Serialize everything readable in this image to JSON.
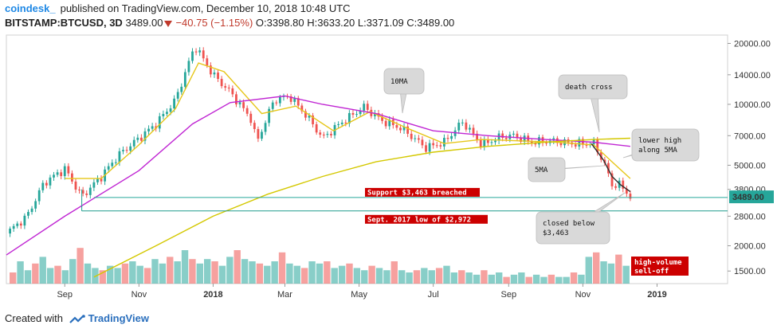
{
  "header": {
    "publisher": "coindesk_",
    "published": "published on TradingView.com, December 10, 2018 10:48 UTC",
    "symbol": "BITSTAMP:BTCUSD, 3D",
    "last": "3489.00",
    "change": "−40.75 (−1.15%)",
    "ohlc": "O:3398.80 H:3633.20 L:3371.09 C:3489.00"
  },
  "footer": {
    "created_with": "Created with",
    "brand": "TradingView"
  },
  "colors": {
    "up": "#26a69a",
    "down": "#ef5350",
    "ma10": "#e6c619",
    "ma5": "#2b2b2b",
    "ma_magenta": "#c026d3",
    "ma_long": "#d4c800",
    "support_line": "#26a69a",
    "label_red": "#cc0000",
    "price_tag": "#26a69a"
  },
  "chart_data": {
    "type": "line",
    "scale": "log",
    "ylim": [
      1300,
      22000
    ],
    "yticks": [
      20000,
      14000,
      10000,
      7000,
      5000,
      3800,
      2800,
      2000,
      1500
    ],
    "ytick_labels": [
      "20000.00",
      "14000.00",
      "10000.00",
      "7000.00",
      "5000.00",
      "3800.00",
      "2800.00",
      "2000.00",
      "1500.00"
    ],
    "x_labels": [
      "Sep",
      "Nov",
      "2018",
      "Mar",
      "May",
      "Jul",
      "Sep",
      "Nov",
      "2019"
    ],
    "x_label_bold": [
      "2018",
      "2019"
    ],
    "x_label_dates": [
      "2017-09-01",
      "2017-11-01",
      "2018-01-01",
      "2018-03-01",
      "2018-05-01",
      "2018-07-01",
      "2018-09-01",
      "2018-11-01",
      "2019-01-01"
    ],
    "xlim": [
      "2017-07-15",
      "2019-02-28"
    ],
    "price_close": [
      [
        "2017-07-15",
        2300
      ],
      [
        "2017-08-01",
        2800
      ],
      [
        "2017-08-15",
        4100
      ],
      [
        "2017-09-01",
        4800
      ],
      [
        "2017-09-15",
        3500
      ],
      [
        "2017-10-01",
        4400
      ],
      [
        "2017-10-15",
        5600
      ],
      [
        "2017-11-01",
        6800
      ],
      [
        "2017-11-15",
        8000
      ],
      [
        "2017-12-01",
        10500
      ],
      [
        "2017-12-17",
        19500
      ],
      [
        "2018-01-01",
        14000
      ],
      [
        "2018-01-15",
        11500
      ],
      [
        "2018-02-01",
        8500
      ],
      [
        "2018-02-06",
        6500
      ],
      [
        "2018-02-20",
        10500
      ],
      [
        "2018-03-05",
        11000
      ],
      [
        "2018-03-20",
        8600
      ],
      [
        "2018-04-01",
        6800
      ],
      [
        "2018-04-15",
        8000
      ],
      [
        "2018-05-05",
        9700
      ],
      [
        "2018-05-20",
        8300
      ],
      [
        "2018-06-05",
        7600
      ],
      [
        "2018-06-25",
        6100
      ],
      [
        "2018-07-10",
        6500
      ],
      [
        "2018-07-25",
        8200
      ],
      [
        "2018-08-10",
        6300
      ],
      [
        "2018-08-25",
        6900
      ],
      [
        "2018-09-05",
        7000
      ],
      [
        "2018-09-20",
        6500
      ],
      [
        "2018-10-05",
        6600
      ],
      [
        "2018-10-25",
        6400
      ],
      [
        "2018-11-10",
        6400
      ],
      [
        "2018-11-18",
        5200
      ],
      [
        "2018-11-25",
        4000
      ],
      [
        "2018-12-02",
        4000
      ],
      [
        "2018-12-10",
        3489
      ]
    ],
    "series": [
      {
        "values": [
          [
            "2017-09-01",
            4300
          ],
          [
            "2017-10-01",
            4300
          ],
          [
            "2017-11-01",
            6300
          ],
          [
            "2017-12-01",
            9500
          ],
          [
            "2017-12-20",
            16000
          ],
          [
            "2018-01-10",
            14500
          ],
          [
            "2018-02-10",
            9000
          ],
          [
            "2018-03-10",
            9800
          ],
          [
            "2018-04-10",
            7400
          ],
          [
            "2018-05-10",
            9200
          ],
          [
            "2018-06-10",
            7600
          ],
          [
            "2018-07-10",
            6400
          ],
          [
            "2018-08-10",
            6700
          ],
          [
            "2018-09-10",
            6600
          ],
          [
            "2018-10-10",
            6500
          ],
          [
            "2018-11-10",
            6300
          ],
          [
            "2018-11-25",
            5200
          ],
          [
            "2018-12-10",
            4300
          ]
        ]
      },
      {
        "values": [
          [
            "2017-07-15",
            1800
          ],
          [
            "2017-09-01",
            2800
          ],
          [
            "2017-11-01",
            4700
          ],
          [
            "2017-12-15",
            8000
          ],
          [
            "2018-01-15",
            10200
          ],
          [
            "2018-03-01",
            11000
          ],
          [
            "2018-04-01",
            10000
          ],
          [
            "2018-05-15",
            9000
          ],
          [
            "2018-07-01",
            7400
          ],
          [
            "2018-08-15",
            7000
          ],
          [
            "2018-10-01",
            6700
          ],
          [
            "2018-11-10",
            6500
          ],
          [
            "2018-12-10",
            6200
          ]
        ]
      },
      {
        "values": [
          [
            "2017-09-25",
            1400
          ],
          [
            "2017-11-15",
            2000
          ],
          [
            "2018-01-01",
            2800
          ],
          [
            "2018-02-15",
            3600
          ],
          [
            "2018-04-01",
            4400
          ],
          [
            "2018-05-15",
            5200
          ],
          [
            "2018-07-01",
            5800
          ],
          [
            "2018-08-15",
            6200
          ],
          [
            "2018-10-01",
            6500
          ],
          [
            "2018-11-10",
            6700
          ],
          [
            "2018-12-10",
            6800
          ]
        ]
      },
      {
        "values": [
          [
            "2018-11-08",
            6400
          ],
          [
            "2018-11-18",
            5300
          ],
          [
            "2018-11-25",
            4400
          ],
          [
            "2018-12-02",
            4000
          ],
          [
            "2018-12-10",
            3700
          ]
        ]
      }
    ],
    "hlines": [
      {
        "y": 3463,
        "label": "Support $3,463 breached",
        "from": "2017-09-25"
      },
      {
        "y": 2972,
        "label": "Sept. 2017 low of $2,972",
        "from": "2017-09-15"
      }
    ],
    "price_tag": "3489.00",
    "volume_relative": [
      0.25,
      0.5,
      0.3,
      0.45,
      0.6,
      0.35,
      0.4,
      0.3,
      0.55,
      0.8,
      0.45,
      0.35,
      0.3,
      0.4,
      0.35,
      0.45,
      0.5,
      0.4,
      0.35,
      0.55,
      0.45,
      0.6,
      0.5,
      0.75,
      0.55,
      0.45,
      0.55,
      0.5,
      0.4,
      0.6,
      0.75,
      0.55,
      0.5,
      0.45,
      0.4,
      0.5,
      0.7,
      0.45,
      0.4,
      0.35,
      0.5,
      0.45,
      0.5,
      0.35,
      0.4,
      0.45,
      0.35,
      0.3,
      0.4,
      0.35,
      0.3,
      0.5,
      0.3,
      0.25,
      0.3,
      0.35,
      0.3,
      0.35,
      0.4,
      0.25,
      0.3,
      0.25,
      0.2,
      0.3,
      0.2,
      0.25,
      0.15,
      0.2,
      0.25,
      0.15,
      0.2,
      0.15,
      0.2,
      0.15,
      0.15,
      0.25,
      0.2,
      0.6,
      0.7,
      0.5,
      0.45,
      0.65,
      0.4
    ],
    "annotations": [
      {
        "text": [
          "10MA"
        ]
      },
      {
        "text": [
          "death cross"
        ]
      },
      {
        "text": [
          "lower high",
          "along 5MA"
        ]
      },
      {
        "text": [
          "5MA"
        ]
      },
      {
        "text": [
          "closed below",
          "$3,463"
        ]
      },
      {
        "text": [
          "high-volume",
          "sell-off"
        ],
        "style": "red"
      }
    ]
  }
}
